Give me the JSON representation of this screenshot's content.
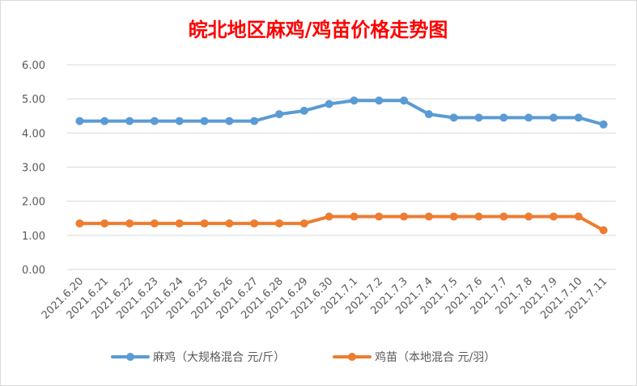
{
  "chart_data": {
    "type": "line",
    "title": "皖北地区麻鸡/鸡苗价格走势图",
    "title_color": "#ff0000",
    "xlabel": "",
    "ylabel": "",
    "categories": [
      "2021.6.20",
      "2021.6.21",
      "2021.6.22",
      "2021.6.23",
      "2021.6.24",
      "2021.6.25",
      "2021.6.26",
      "2021.6.27",
      "2021.6.28",
      "2021.6.29",
      "2021.6.30",
      "2021.7.1",
      "2021.7.2",
      "2021.7.3",
      "2021.7.4",
      "2021.7.5",
      "2021.7.6",
      "2021.7.7",
      "2021.7.8",
      "2021.7.9",
      "2021.7.10",
      "2021.7.11"
    ],
    "ylim": [
      0,
      6
    ],
    "y_ticks": [
      "0.00",
      "1.00",
      "2.00",
      "3.00",
      "4.00",
      "5.00",
      "6.00"
    ],
    "grid": true,
    "legend_position": "bottom",
    "series": [
      {
        "name": "麻鸡（大规格混合 元/斤）",
        "color": "#5b9bd5",
        "values": [
          4.35,
          4.35,
          4.35,
          4.35,
          4.35,
          4.35,
          4.35,
          4.35,
          4.55,
          4.65,
          4.85,
          4.95,
          4.95,
          4.95,
          4.55,
          4.45,
          4.45,
          4.45,
          4.45,
          4.45,
          4.45,
          4.25
        ]
      },
      {
        "name": "鸡苗（本地混合 元/羽）",
        "color": "#ed7d31",
        "values": [
          1.35,
          1.35,
          1.35,
          1.35,
          1.35,
          1.35,
          1.35,
          1.35,
          1.35,
          1.35,
          1.55,
          1.55,
          1.55,
          1.55,
          1.55,
          1.55,
          1.55,
          1.55,
          1.55,
          1.55,
          1.55,
          1.15
        ]
      }
    ]
  }
}
